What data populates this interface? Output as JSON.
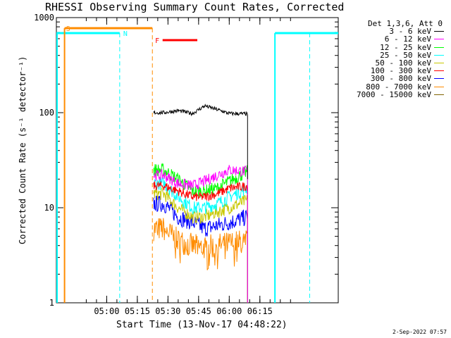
{
  "chart_data": {
    "type": "line",
    "title": "RHESSI Observing Summary Count Rates, Corrected",
    "xlabel": "Start Time (13-Nov-17 04:48:22)",
    "ylabel": "Corrected Count Rate (s⁻¹ detector⁻¹)",
    "yscale": "log",
    "ylim": [
      1,
      1000
    ],
    "xlim_minutes": [
      -13,
      125
    ],
    "x_ticks": [
      "05:00",
      "05:15",
      "05:30",
      "05:45",
      "06:00",
      "06:15"
    ],
    "y_ticks": [
      "1",
      "10",
      "100",
      "1000"
    ],
    "legend_header": "Det 1,3,6, Att 0",
    "legend_position": "right",
    "series": [
      {
        "name": "3 - 6 keV",
        "color": "#000000",
        "x": [
          "05:28",
          "05:35",
          "05:42",
          "05:48",
          "05:54",
          "06:00",
          "06:09"
        ],
        "values": [
          100,
          105,
          98,
          118,
          108,
          98,
          97
        ]
      },
      {
        "name": "6 - 12 keV",
        "color": "#ff00ff",
        "x": [
          "05:28",
          "05:35",
          "05:42",
          "05:48",
          "05:54",
          "06:00",
          "06:09"
        ],
        "values": [
          22,
          18,
          17,
          19,
          22,
          25,
          24
        ]
      },
      {
        "name": "12 - 25 keV",
        "color": "#00ff00",
        "x": [
          "05:28",
          "05:35",
          "05:42",
          "05:48",
          "05:54",
          "06:00",
          "06:09"
        ],
        "values": [
          25,
          20,
          15,
          15,
          16,
          19,
          24
        ]
      },
      {
        "name": "25 - 50 keV",
        "color": "#00ffff",
        "x": [
          "05:28",
          "05:35",
          "05:42",
          "05:48",
          "05:54",
          "06:00",
          "06:09"
        ],
        "values": [
          18,
          13,
          10,
          10,
          11,
          13,
          16
        ]
      },
      {
        "name": "50 - 100 keV",
        "color": "#c8c800",
        "x": [
          "05:28",
          "05:35",
          "05:42",
          "05:48",
          "05:54",
          "06:00",
          "06:09"
        ],
        "values": [
          14,
          10,
          8,
          8,
          9,
          10,
          12
        ]
      },
      {
        "name": "100 - 300 keV",
        "color": "#ff0000",
        "x": [
          "05:28",
          "05:35",
          "05:42",
          "05:48",
          "05:54",
          "06:00",
          "06:09"
        ],
        "values": [
          17,
          15,
          13,
          13,
          14,
          16,
          17
        ]
      },
      {
        "name": "300 - 800 keV",
        "color": "#0000ff",
        "x": [
          "05:28",
          "05:35",
          "05:42",
          "05:48",
          "05:54",
          "06:00",
          "06:09"
        ],
        "values": [
          11,
          8,
          7,
          6,
          6.5,
          7,
          8
        ]
      },
      {
        "name": "800 - 7000 keV",
        "color": "#ff8c00",
        "x": [
          "05:28",
          "05:35",
          "05:42",
          "05:48",
          "05:54",
          "06:00",
          "06:09"
        ],
        "values": [
          6,
          4.5,
          4,
          3.8,
          4,
          4.2,
          4.5
        ]
      },
      {
        "name": "7000 - 15000 keV",
        "color": "#806400",
        "x": [],
        "values": []
      }
    ],
    "annotations": [
      "S",
      "N",
      "F"
    ],
    "footer": "2-Sep-2022 07:57"
  }
}
